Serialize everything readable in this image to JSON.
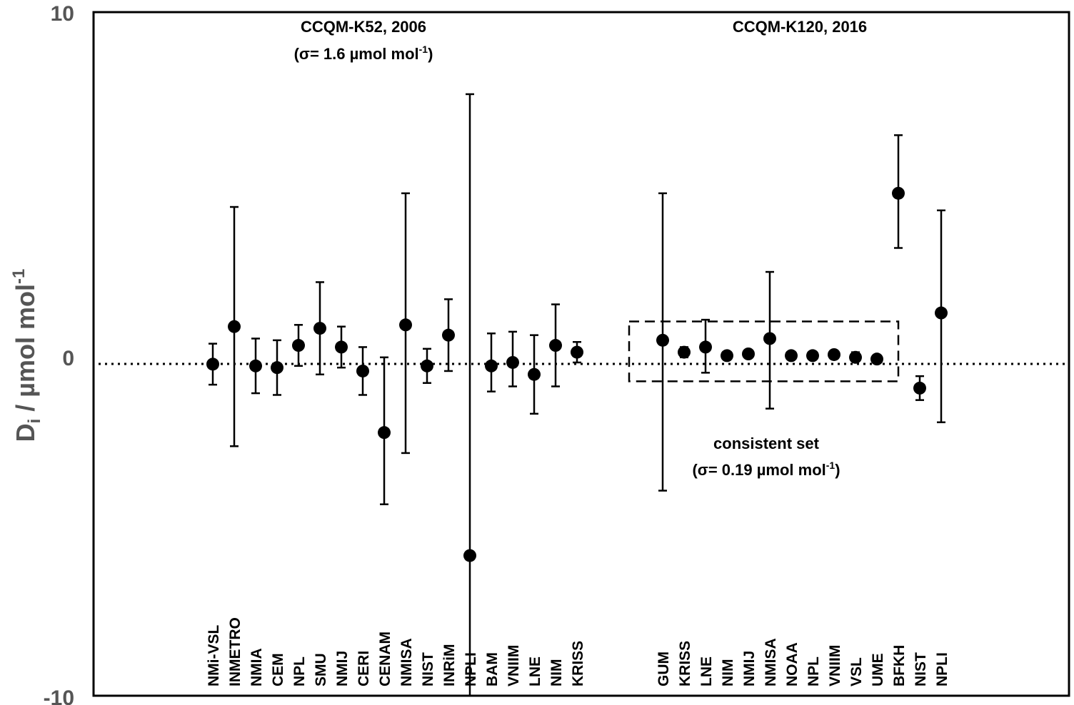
{
  "chart_data": {
    "type": "scatter",
    "subtype": "error-bar",
    "ylabel": "Dᵢ / µmol mol⁻¹",
    "ylabel_base": "D",
    "ylabel_sub": "i",
    "ylabel_rest": " / µmol mol",
    "ylabel_sup": "-1",
    "ylim": [
      -10,
      10
    ],
    "yticks": [
      "10",
      "0",
      "-10"
    ],
    "ytick_values": [
      10,
      0,
      -10
    ],
    "zero_line": "dotted",
    "grid": false,
    "series": [
      {
        "name": "CCQM-K52, 2006",
        "sigma_label": "(σ= 1.6 µmol mol",
        "points": [
          {
            "label": "NMi-VSL",
            "value": -0.3,
            "lower": -0.9,
            "upper": 0.3
          },
          {
            "label": "INMETRO",
            "value": 0.8,
            "lower": -2.7,
            "upper": 4.3
          },
          {
            "label": "NMIA",
            "value": -0.35,
            "lower": -1.15,
            "upper": 0.45
          },
          {
            "label": "CEM",
            "value": -0.4,
            "lower": -1.2,
            "upper": 0.4
          },
          {
            "label": "NPL",
            "value": 0.25,
            "lower": -0.35,
            "upper": 0.85
          },
          {
            "label": "SMU",
            "value": 0.75,
            "lower": -0.6,
            "upper": 2.1
          },
          {
            "label": "NMIJ",
            "value": 0.2,
            "lower": -0.4,
            "upper": 0.8
          },
          {
            "label": "CERI",
            "value": -0.5,
            "lower": -1.2,
            "upper": 0.2
          },
          {
            "label": "CENAM",
            "value": -2.3,
            "lower": -4.4,
            "upper": -0.1
          },
          {
            "label": "NMISA",
            "value": 0.85,
            "lower": -2.9,
            "upper": 4.7
          },
          {
            "label": "NIST",
            "value": -0.35,
            "lower": -0.85,
            "upper": 0.15
          },
          {
            "label": "INRiM",
            "value": 0.55,
            "lower": -0.5,
            "upper": 1.6
          },
          {
            "label": "NPLI",
            "value": -5.9,
            "lower": -10,
            "upper": 7.6
          },
          {
            "label": "BAM",
            "value": -0.35,
            "lower": -1.1,
            "upper": 0.6
          },
          {
            "label": "VNIIM",
            "value": -0.25,
            "lower": -0.95,
            "upper": 0.65
          },
          {
            "label": "LNE",
            "value": -0.6,
            "lower": -1.75,
            "upper": 0.55
          },
          {
            "label": "NIM",
            "value": 0.25,
            "lower": -0.95,
            "upper": 1.45
          },
          {
            "label": "KRISS",
            "value": 0.05,
            "lower": -0.25,
            "upper": 0.35
          }
        ]
      },
      {
        "name": "CCQM-K120, 2016",
        "points": [
          {
            "label": "GUM",
            "value": 0.4,
            "lower": -4.0,
            "upper": 4.7
          },
          {
            "label": "KRISS",
            "value": 0.05,
            "lower": -0.1,
            "upper": 0.2
          },
          {
            "label": "LNE",
            "value": 0.2,
            "lower": -0.55,
            "upper": 1.0
          },
          {
            "label": "NIM",
            "value": -0.05,
            "lower": -0.15,
            "upper": 0.05
          },
          {
            "label": "NMIJ",
            "value": 0.0,
            "lower": -0.08,
            "upper": 0.08
          },
          {
            "label": "NMISA",
            "value": 0.45,
            "lower": -1.6,
            "upper": 2.4
          },
          {
            "label": "NOAA",
            "value": -0.05,
            "lower": -0.15,
            "upper": 0.05
          },
          {
            "label": "NPL",
            "value": -0.05,
            "lower": -0.15,
            "upper": 0.05
          },
          {
            "label": "VNIIM",
            "value": -0.02,
            "lower": -0.08,
            "upper": 0.04
          },
          {
            "label": "VSL",
            "value": -0.1,
            "lower": -0.2,
            "upper": 0.05
          },
          {
            "label": "UME",
            "value": -0.15,
            "lower": -0.25,
            "upper": -0.05
          },
          {
            "label": "BFKH",
            "value": 4.7,
            "lower": 3.1,
            "upper": 6.4
          },
          {
            "label": "NIST",
            "value": -1.0,
            "lower": -1.35,
            "upper": -0.65
          },
          {
            "label": "NPLI",
            "value": 1.2,
            "lower": -2.0,
            "upper": 4.2
          }
        ]
      }
    ],
    "annotations": {
      "k52_title": "CCQM-K52, 2006",
      "k52_sigma": "(σ= 1.6 µmol mol",
      "sup": "-1",
      "close": ")",
      "k120_title": "CCQM-K120, 2016",
      "consistent_title": "consistent set",
      "consistent_sigma": "(σ= 0.19 µmol mol",
      "consistent_box": {
        "from": "GUM",
        "to": "BFKH",
        "ymin": -0.8,
        "ymax": 1.2
      }
    }
  }
}
